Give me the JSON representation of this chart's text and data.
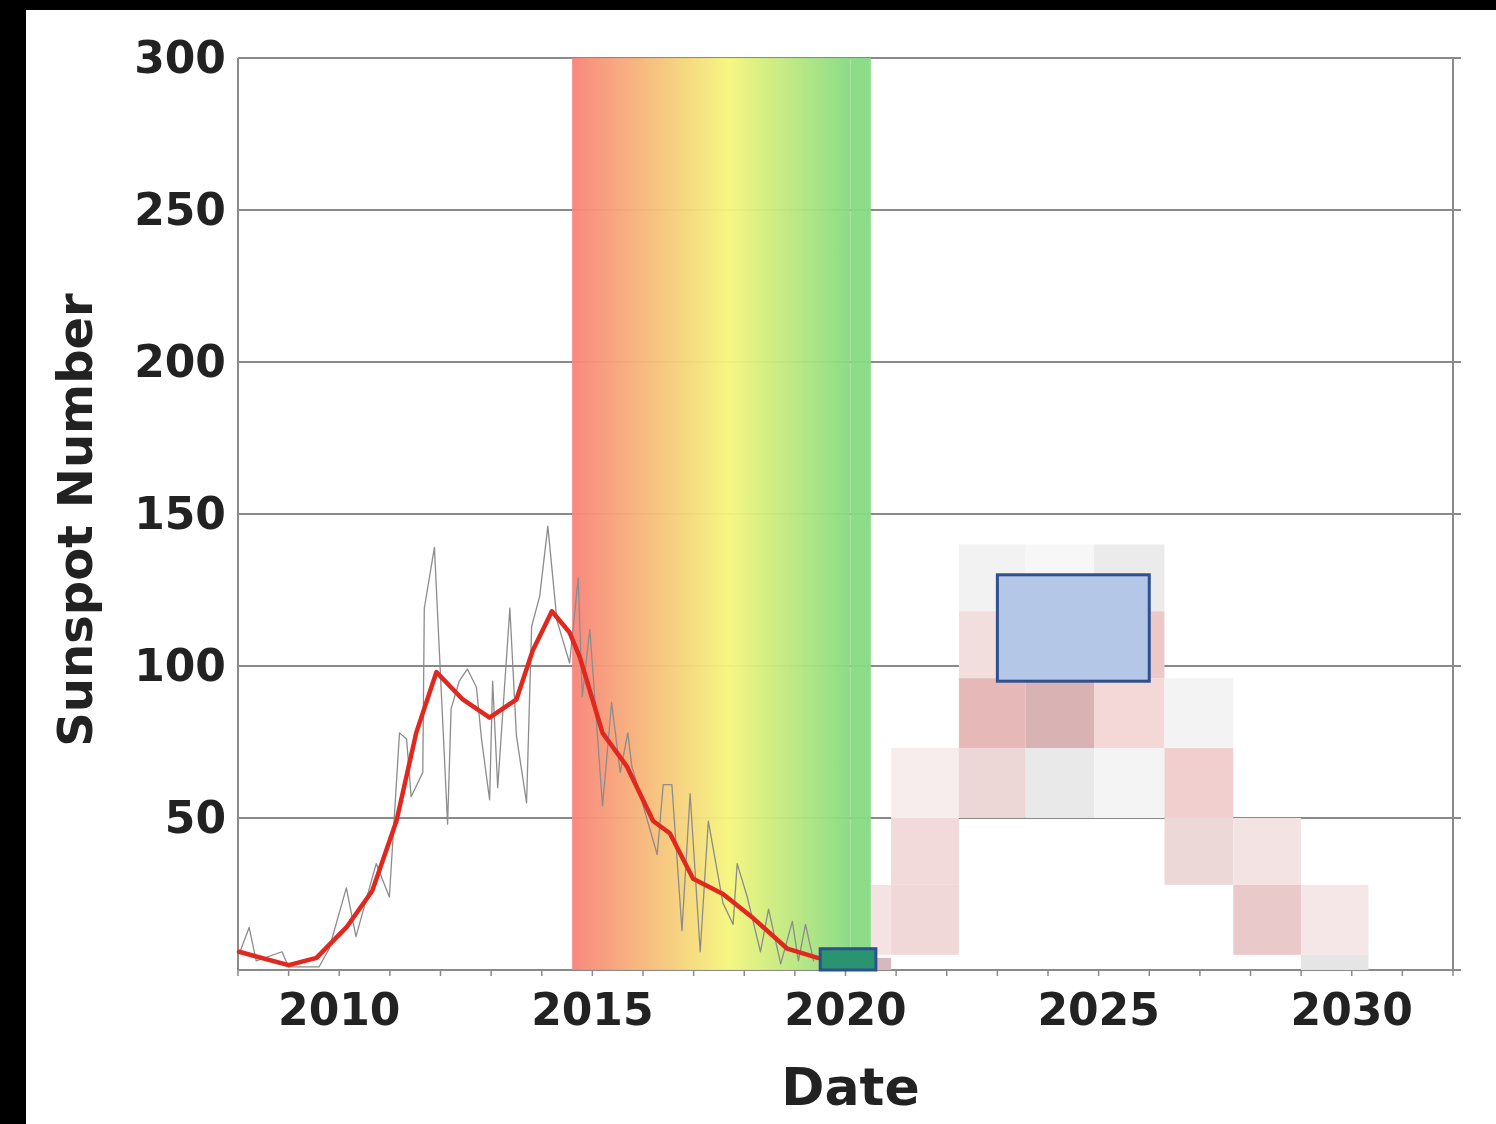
{
  "chart_data": {
    "type": "line",
    "xlabel": "Date",
    "ylabel": "Sunspot Number",
    "xlim": [
      2008,
      2032
    ],
    "xticks": [
      2010,
      2015,
      2020,
      2025,
      2030
    ],
    "ylim": [
      0,
      300
    ],
    "yticks": [
      50,
      100,
      150,
      200,
      250,
      300
    ],
    "grid": "y",
    "bands": [
      {
        "axis": "x",
        "from": 2014.6,
        "to": 2017.7,
        "color": "#f88278"
      },
      {
        "axis": "x",
        "from": 2017.7,
        "to": 2020.1,
        "color": "#f5f67c"
      },
      {
        "axis": "x",
        "from": 2020.1,
        "to": 2020.5,
        "color": "#86da82"
      }
    ],
    "series": [
      {
        "color": "#8c8c8c",
        "x": [
          2008.04,
          2008.22,
          2008.36,
          2008.87,
          2009.0,
          2009.6,
          2009.8,
          2010.14,
          2010.33,
          2010.73,
          2010.99,
          2011.19,
          2011.33,
          2011.42,
          2011.65,
          2011.68,
          2011.88,
          2012.14,
          2012.21,
          2012.37,
          2012.53,
          2012.71,
          2012.81,
          2012.97,
          2013.03,
          2013.13,
          2013.37,
          2013.5,
          2013.7,
          2013.8,
          2013.96,
          2014.12,
          2014.3,
          2014.55,
          2014.72,
          2014.8,
          2014.95,
          2015.2,
          2015.38,
          2015.55,
          2015.7,
          2015.78,
          2016.28,
          2016.4,
          2016.57,
          2016.77,
          2016.93,
          2017.13,
          2017.29,
          2017.58,
          2017.78,
          2017.86,
          2018.06,
          2018.32,
          2018.48,
          2018.72,
          2018.95,
          2019.07,
          2019.21,
          2019.37
        ],
        "values": [
          6,
          14,
          3,
          6,
          1,
          1,
          7,
          27,
          11,
          35,
          24,
          78,
          76,
          57,
          65,
          119,
          139,
          48,
          86,
          95,
          99,
          93,
          76,
          56,
          95,
          60,
          119,
          77,
          55,
          113,
          123,
          146,
          115,
          101,
          129,
          90,
          112,
          54,
          88,
          65,
          78,
          67,
          38,
          61,
          61,
          13,
          58,
          6,
          49,
          22,
          15,
          35,
          24,
          6,
          20,
          2,
          16,
          3,
          15,
          3
        ]
      },
      {
        "color": "#e0281e",
        "x": [
          2008.02,
          2009.0,
          2009.55,
          2010.14,
          2010.65,
          2011.13,
          2011.52,
          2011.92,
          2012.44,
          2012.97,
          2013.5,
          2013.82,
          2014.2,
          2014.55,
          2014.75,
          2015.2,
          2015.68,
          2016.2,
          2016.53,
          2016.99,
          2017.58,
          2018.18,
          2018.85,
          2019.45
        ],
        "values": [
          6,
          1.6,
          4,
          14,
          26,
          49,
          78,
          98,
          89,
          83,
          89,
          105,
          118,
          111,
          103,
          78,
          67,
          49,
          45,
          30,
          25,
          17,
          7,
          4
        ]
      },
      {
        "type": "bar",
        "color": "#2a9470",
        "x": [
          2020.05
        ],
        "base": [
          0
        ],
        "values": [
          7
        ]
      },
      {
        "type": "bar",
        "color": "#b4c7e7",
        "x": [
          2024.5
        ],
        "base": [
          95
        ],
        "values": [
          35
        ]
      }
    ]
  }
}
